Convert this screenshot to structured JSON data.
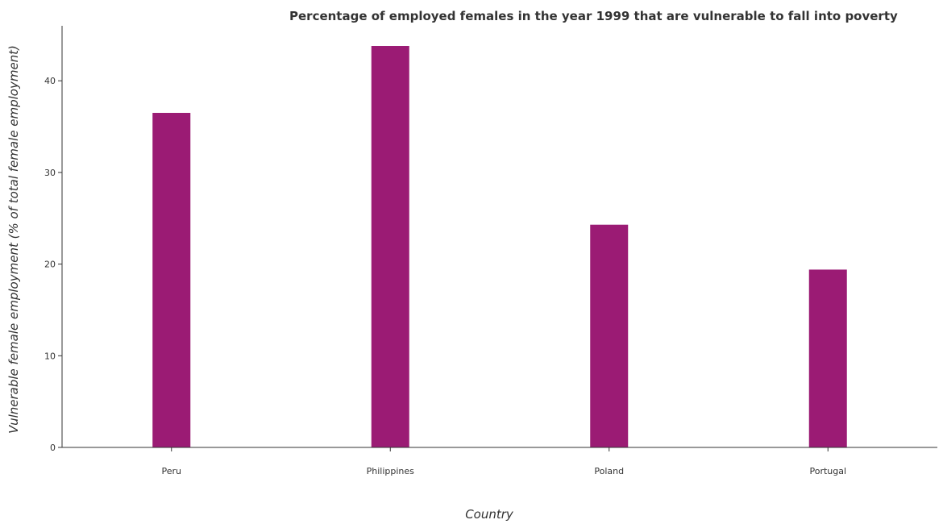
{
  "chart_data": {
    "type": "bar",
    "title": "Percentage of employed females in the year 1999 that are vulnerable to fall into poverty",
    "xlabel": "Country",
    "ylabel": "Vulnerable female employment (% of total female employment)",
    "categories": [
      "Peru",
      "Philippines",
      "Poland",
      "Portugal"
    ],
    "values": [
      36.5,
      43.8,
      24.3,
      19.4
    ],
    "yticks": [
      0,
      10,
      20,
      30,
      40
    ],
    "ylim": [
      0,
      46
    ],
    "bar_color": "#9b1b74",
    "grid": false,
    "legend": "none"
  }
}
